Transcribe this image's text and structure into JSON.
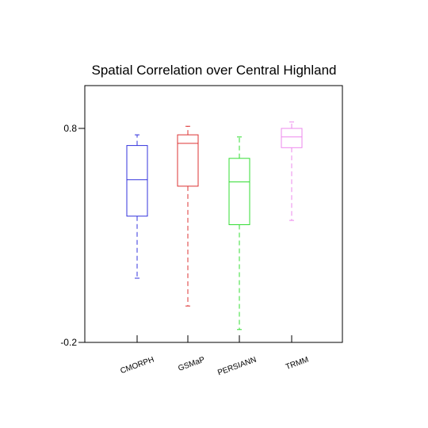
{
  "chart_data": {
    "type": "box",
    "title": "Spatial Correlation over Central Highland",
    "xlabel": "",
    "ylabel": "",
    "ylim": [
      -0.2,
      1.0
    ],
    "yticks": [
      {
        "value": 0.8,
        "label": "0.8"
      },
      {
        "value": -0.2,
        "label": "-0.2"
      }
    ],
    "grid": false,
    "categories": [
      "CMORPH",
      "GSMaP",
      "PERSIANN",
      "TRMM"
    ],
    "series": [
      {
        "category": "CMORPH",
        "color": "#3333dd",
        "min": 0.1,
        "q1": 0.39,
        "median": 0.56,
        "q3": 0.72,
        "max": 0.77
      },
      {
        "category": "GSMaP",
        "color": "#dd3333",
        "min": -0.03,
        "q1": 0.53,
        "median": 0.73,
        "q3": 0.77,
        "max": 0.81
      },
      {
        "category": "PERSIANN",
        "color": "#33dd33",
        "min": -0.14,
        "q1": 0.35,
        "median": 0.55,
        "q3": 0.66,
        "max": 0.76
      },
      {
        "category": "TRMM",
        "color": "#ee88ee",
        "min": 0.37,
        "q1": 0.71,
        "median": 0.76,
        "q3": 0.8,
        "max": 0.83
      }
    ]
  }
}
